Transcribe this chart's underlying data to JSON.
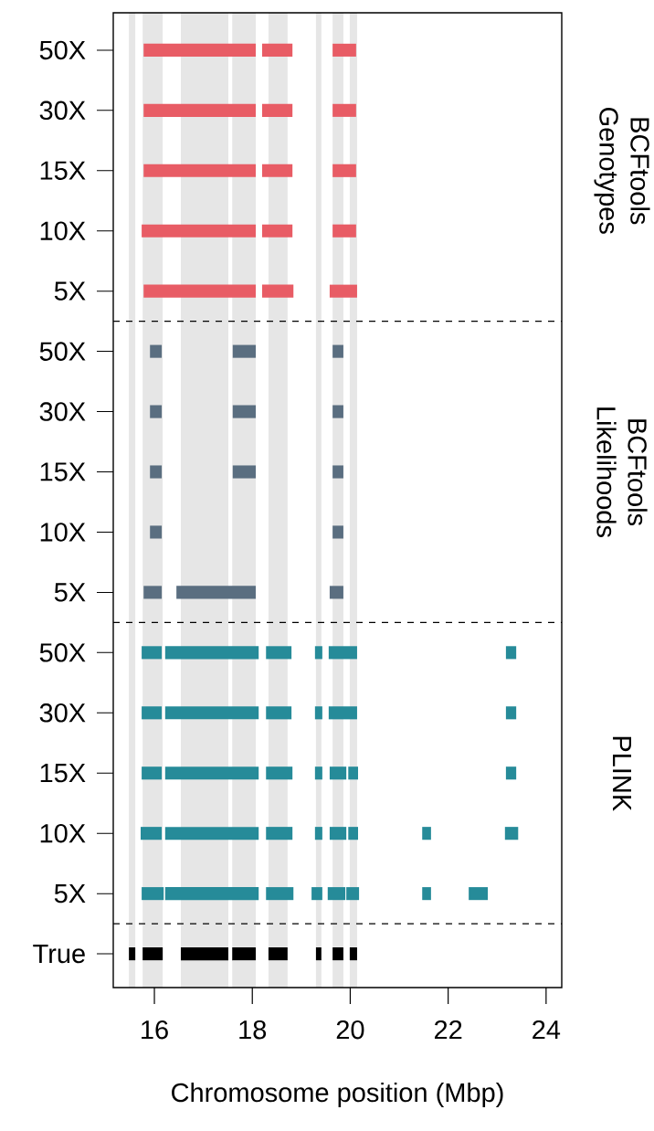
{
  "chart_data": {
    "type": "bar",
    "orientation": "horizontal",
    "xlabel": "Chromosome position (Mbp)",
    "categories": [
      "50X",
      "30X",
      "15X",
      "10X",
      "5X",
      "50X",
      "30X",
      "15X",
      "10X",
      "5X",
      "50X",
      "30X",
      "15X",
      "10X",
      "5X",
      "True"
    ],
    "xlim": [
      15.16,
      24.32
    ],
    "xticks": [
      16,
      18,
      20,
      22,
      24
    ],
    "grid": false,
    "series": [
      {
        "color": "#e85c65",
        "base": [
          15.78,
          15.78,
          15.78,
          15.74,
          15.78,
          null,
          null,
          null,
          null,
          null,
          null,
          null,
          null,
          null,
          null,
          null
        ],
        "values": [
          2.29,
          2.29,
          2.29,
          2.33,
          2.29,
          null,
          null,
          null,
          null,
          null,
          null,
          null,
          null,
          null,
          null,
          null
        ]
      },
      {
        "color": "#e85c65",
        "base": [
          18.2,
          18.2,
          18.2,
          18.2,
          18.2,
          null,
          null,
          null,
          null,
          null,
          null,
          null,
          null,
          null,
          null,
          null
        ],
        "values": [
          0.62,
          0.62,
          0.62,
          0.62,
          0.64,
          null,
          null,
          null,
          null,
          null,
          null,
          null,
          null,
          null,
          null,
          null
        ]
      },
      {
        "color": "#e85c65",
        "base": [
          19.64,
          19.64,
          19.64,
          19.64,
          19.58,
          null,
          null,
          null,
          null,
          null,
          null,
          null,
          null,
          null,
          null,
          null
        ],
        "values": [
          0.48,
          0.48,
          0.48,
          0.48,
          0.56,
          null,
          null,
          null,
          null,
          null,
          null,
          null,
          null,
          null,
          null,
          null
        ]
      },
      {
        "color": "#5a6e80",
        "base": [
          null,
          null,
          null,
          null,
          null,
          15.91,
          15.91,
          15.91,
          15.91,
          15.78,
          null,
          null,
          null,
          null,
          null,
          null
        ],
        "values": [
          null,
          null,
          null,
          null,
          null,
          0.24,
          0.24,
          0.24,
          0.24,
          0.37,
          null,
          null,
          null,
          null,
          null,
          null
        ]
      },
      {
        "color": "#5a6e80",
        "base": [
          null,
          null,
          null,
          null,
          null,
          17.6,
          17.6,
          17.6,
          null,
          16.45,
          null,
          null,
          null,
          null,
          null,
          null
        ],
        "values": [
          null,
          null,
          null,
          null,
          null,
          0.47,
          0.47,
          0.47,
          null,
          1.62,
          null,
          null,
          null,
          null,
          null,
          null
        ]
      },
      {
        "color": "#5a6e80",
        "base": [
          null,
          null,
          null,
          null,
          null,
          19.64,
          19.64,
          19.64,
          19.64,
          19.58,
          null,
          null,
          null,
          null,
          null,
          null
        ],
        "values": [
          null,
          null,
          null,
          null,
          null,
          0.22,
          0.22,
          0.22,
          0.22,
          0.28,
          null,
          null,
          null,
          null,
          null,
          null
        ]
      },
      {
        "color": "#268b99",
        "base": [
          null,
          null,
          null,
          null,
          null,
          null,
          null,
          null,
          null,
          null,
          15.74,
          15.74,
          15.74,
          15.72,
          15.74,
          null
        ],
        "values": [
          null,
          null,
          null,
          null,
          null,
          null,
          null,
          null,
          null,
          null,
          0.41,
          0.41,
          0.41,
          0.43,
          0.45,
          null
        ]
      },
      {
        "color": "#268b99",
        "base": [
          null,
          null,
          null,
          null,
          null,
          null,
          null,
          null,
          null,
          null,
          16.22,
          16.22,
          16.22,
          16.22,
          16.22,
          null
        ],
        "values": [
          null,
          null,
          null,
          null,
          null,
          null,
          null,
          null,
          null,
          null,
          1.91,
          1.91,
          1.91,
          1.91,
          1.91,
          null
        ]
      },
      {
        "color": "#268b99",
        "base": [
          null,
          null,
          null,
          null,
          null,
          null,
          null,
          null,
          null,
          null,
          18.28,
          18.28,
          18.28,
          18.28,
          18.28,
          null
        ],
        "values": [
          null,
          null,
          null,
          null,
          null,
          null,
          null,
          null,
          null,
          null,
          0.52,
          0.52,
          0.54,
          0.54,
          0.56,
          null
        ]
      },
      {
        "color": "#268b99",
        "base": [
          null,
          null,
          null,
          null,
          null,
          null,
          null,
          null,
          null,
          null,
          19.28,
          19.28,
          19.28,
          19.28,
          19.21,
          null
        ],
        "values": [
          null,
          null,
          null,
          null,
          null,
          null,
          null,
          null,
          null,
          null,
          0.15,
          0.15,
          0.15,
          0.15,
          0.22,
          null
        ]
      },
      {
        "color": "#268b99",
        "base": [
          null,
          null,
          null,
          null,
          null,
          null,
          null,
          null,
          null,
          null,
          19.56,
          19.56,
          19.58,
          19.58,
          19.54,
          null
        ],
        "values": [
          null,
          null,
          null,
          null,
          null,
          null,
          null,
          null,
          null,
          null,
          0.58,
          0.58,
          0.34,
          0.34,
          0.36,
          null
        ]
      },
      {
        "color": "#268b99",
        "base": [
          null,
          null,
          null,
          null,
          null,
          null,
          null,
          null,
          null,
          null,
          null,
          null,
          19.96,
          19.96,
          19.92,
          null
        ],
        "values": [
          null,
          null,
          null,
          null,
          null,
          null,
          null,
          null,
          null,
          null,
          null,
          null,
          0.2,
          0.2,
          0.26,
          null
        ]
      },
      {
        "color": "#268b99",
        "base": [
          null,
          null,
          null,
          null,
          null,
          null,
          null,
          null,
          null,
          null,
          null,
          null,
          null,
          21.47,
          21.47,
          null
        ],
        "values": [
          null,
          null,
          null,
          null,
          null,
          null,
          null,
          null,
          null,
          null,
          null,
          null,
          null,
          0.18,
          0.18,
          null
        ]
      },
      {
        "color": "#268b99",
        "base": [
          null,
          null,
          null,
          null,
          null,
          null,
          null,
          null,
          null,
          null,
          null,
          null,
          null,
          null,
          22.42,
          null
        ],
        "values": [
          null,
          null,
          null,
          null,
          null,
          null,
          null,
          null,
          null,
          null,
          null,
          null,
          null,
          null,
          0.39,
          null
        ]
      },
      {
        "color": "#268b99",
        "base": [
          null,
          null,
          null,
          null,
          null,
          null,
          null,
          null,
          null,
          null,
          23.18,
          23.18,
          23.18,
          23.16,
          null,
          null
        ],
        "values": [
          null,
          null,
          null,
          null,
          null,
          null,
          null,
          null,
          null,
          null,
          0.21,
          0.21,
          0.21,
          0.27,
          null,
          null
        ]
      },
      {
        "color": "#000000",
        "base": [
          null,
          null,
          null,
          null,
          null,
          null,
          null,
          null,
          null,
          null,
          null,
          null,
          null,
          null,
          null,
          15.48
        ],
        "values": [
          null,
          null,
          null,
          null,
          null,
          null,
          null,
          null,
          null,
          null,
          null,
          null,
          null,
          null,
          null,
          0.13
        ]
      },
      {
        "color": "#000000",
        "base": [
          null,
          null,
          null,
          null,
          null,
          null,
          null,
          null,
          null,
          null,
          null,
          null,
          null,
          null,
          null,
          15.76
        ],
        "values": [
          null,
          null,
          null,
          null,
          null,
          null,
          null,
          null,
          null,
          null,
          null,
          null,
          null,
          null,
          null,
          0.41
        ]
      },
      {
        "color": "#000000",
        "base": [
          null,
          null,
          null,
          null,
          null,
          null,
          null,
          null,
          null,
          null,
          null,
          null,
          null,
          null,
          null,
          16.54
        ],
        "values": [
          null,
          null,
          null,
          null,
          null,
          null,
          null,
          null,
          null,
          null,
          null,
          null,
          null,
          null,
          null,
          0.97
        ]
      },
      {
        "color": "#000000",
        "base": [
          null,
          null,
          null,
          null,
          null,
          null,
          null,
          null,
          null,
          null,
          null,
          null,
          null,
          null,
          null,
          17.59
        ],
        "values": [
          null,
          null,
          null,
          null,
          null,
          null,
          null,
          null,
          null,
          null,
          null,
          null,
          null,
          null,
          null,
          0.48
        ]
      },
      {
        "color": "#000000",
        "base": [
          null,
          null,
          null,
          null,
          null,
          null,
          null,
          null,
          null,
          null,
          null,
          null,
          null,
          null,
          null,
          18.33
        ],
        "values": [
          null,
          null,
          null,
          null,
          null,
          null,
          null,
          null,
          null,
          null,
          null,
          null,
          null,
          null,
          null,
          0.39
        ]
      },
      {
        "color": "#000000",
        "base": [
          null,
          null,
          null,
          null,
          null,
          null,
          null,
          null,
          null,
          null,
          null,
          null,
          null,
          null,
          null,
          19.3
        ],
        "values": [
          null,
          null,
          null,
          null,
          null,
          null,
          null,
          null,
          null,
          null,
          null,
          null,
          null,
          null,
          null,
          0.11
        ]
      },
      {
        "color": "#000000",
        "base": [
          null,
          null,
          null,
          null,
          null,
          null,
          null,
          null,
          null,
          null,
          null,
          null,
          null,
          null,
          null,
          19.64
        ],
        "values": [
          null,
          null,
          null,
          null,
          null,
          null,
          null,
          null,
          null,
          null,
          null,
          null,
          null,
          null,
          null,
          0.22
        ]
      },
      {
        "color": "#000000",
        "base": [
          null,
          null,
          null,
          null,
          null,
          null,
          null,
          null,
          null,
          null,
          null,
          null,
          null,
          null,
          null,
          19.99
        ],
        "values": [
          null,
          null,
          null,
          null,
          null,
          null,
          null,
          null,
          null,
          null,
          null,
          null,
          null,
          null,
          null,
          0.15
        ]
      }
    ],
    "bands": [
      {
        "axis": "x",
        "from": 15.48,
        "to": 15.61,
        "color": "#e6e6e6"
      },
      {
        "axis": "x",
        "from": 15.76,
        "to": 16.17,
        "color": "#e6e6e6"
      },
      {
        "axis": "x",
        "from": 16.54,
        "to": 17.51,
        "color": "#e6e6e6"
      },
      {
        "axis": "x",
        "from": 17.59,
        "to": 18.07,
        "color": "#e6e6e6"
      },
      {
        "axis": "x",
        "from": 18.33,
        "to": 18.72,
        "color": "#e6e6e6"
      },
      {
        "axis": "x",
        "from": 19.3,
        "to": 19.41,
        "color": "#e6e6e6"
      },
      {
        "axis": "x",
        "from": 19.64,
        "to": 19.86,
        "color": "#e6e6e6"
      },
      {
        "axis": "x",
        "from": 19.99,
        "to": 20.14,
        "color": "#e6e6e6"
      }
    ],
    "annotations": [
      "BCFtools Genotypes",
      "BCFtools Likelihoods",
      "PLINK"
    ]
  }
}
